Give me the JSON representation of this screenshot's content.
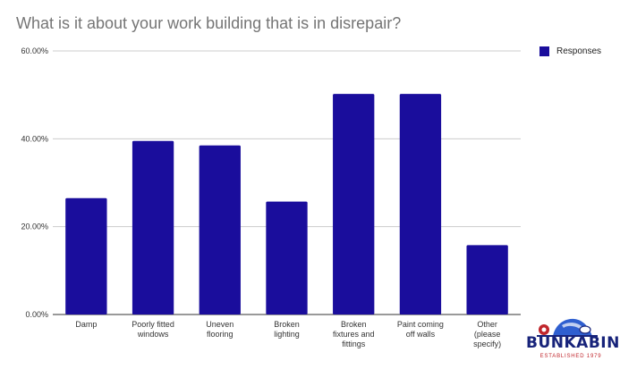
{
  "chart_data": {
    "type": "bar",
    "title": "What is it about your work building that is in disrepair?",
    "categories": [
      [
        "Damp"
      ],
      [
        "Poorly fitted",
        "windows"
      ],
      [
        "Uneven",
        "flooring"
      ],
      [
        "Broken",
        "lighting"
      ],
      [
        "Broken",
        "fixtures and",
        "fittings"
      ],
      [
        "Paint coming",
        "off walls"
      ],
      [
        "Other",
        "(please",
        "specify)"
      ]
    ],
    "series": [
      {
        "name": "Responses",
        "values": [
          26.5,
          39.5,
          38.5,
          25.7,
          50.2,
          50.2,
          15.8
        ]
      }
    ],
    "ylim": [
      0,
      60
    ],
    "yticks": [
      0,
      20,
      40,
      60
    ],
    "ytick_labels": [
      "0.00%",
      "20.00%",
      "40.00%",
      "60.00%"
    ],
    "grid": true,
    "legend_position": "top-right",
    "bar_color": "#1a0d9c",
    "grid_color": "#cccccc",
    "axis_color": "#333333"
  },
  "logo": {
    "name": "BUNKABIN",
    "tagline": "ESTABLISHED 1979",
    "colors": {
      "navy": "#17237a",
      "red": "#c0262c",
      "blue": "#2f5fd0"
    }
  }
}
